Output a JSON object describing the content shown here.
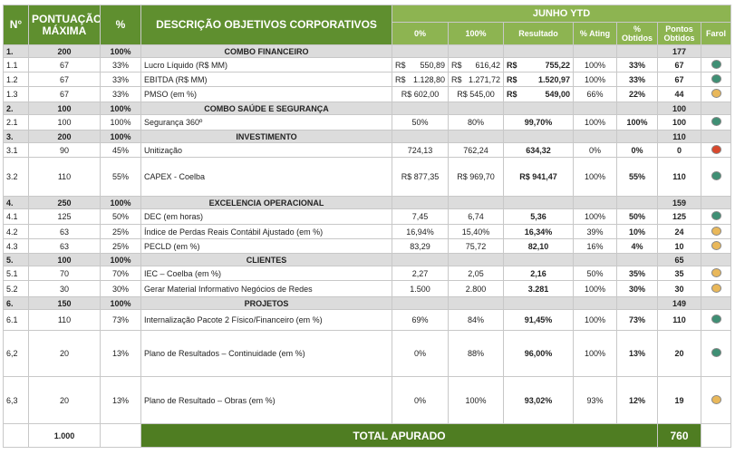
{
  "header": {
    "n": "N°",
    "points": "PONTUAÇÃO MÁXIMA",
    "pct": "%",
    "desc": "DESCRIÇÃO OBJETIVOS CORPORATIVOS",
    "period": "JUNHO YTD",
    "cols": [
      "0%",
      "100%",
      "Resultado",
      "% Ating",
      "% Obtidos",
      "Pontos Obtidos",
      "Farol"
    ]
  },
  "farol_colors": {
    "green": "#3f8f74",
    "yellow": "#e9b85a",
    "red": "#d8482c"
  },
  "sections": [
    {
      "number": "1.",
      "points": "200",
      "pct": "100%",
      "title": "COMBO FINANCEIRO",
      "obtained": "177",
      "items": [
        [
          "1.1",
          "67",
          "33%",
          "Lucro Líquido (R$ MM)",
          [
            "R$",
            "550,89"
          ],
          [
            "R$",
            "616,42"
          ],
          [
            "R$",
            "755,22"
          ],
          "100%",
          "33%",
          "67",
          "green"
        ],
        [
          "1.2",
          "67",
          "33%",
          "EBITDA (R$ MM)",
          [
            "R$",
            "1.128,80"
          ],
          [
            "R$",
            "1.271,72"
          ],
          [
            "R$",
            "1.520,97"
          ],
          "100%",
          "33%",
          "67",
          "green"
        ],
        [
          "1.3",
          "67",
          "33%",
          "PMSO (em %)",
          "R$ 602,00",
          "R$ 545,00",
          [
            "R$",
            "549,00"
          ],
          "66%",
          "22%",
          "44",
          "yellow"
        ]
      ]
    },
    {
      "number": "2.",
      "points": "100",
      "pct": "100%",
      "title": "COMBO SAÚDE E SEGURANÇA",
      "obtained": "100",
      "items": [
        [
          "2.1",
          "100",
          "100%",
          "Segurança 360º",
          "50%",
          "80%",
          "99,70%",
          "100%",
          "100%",
          "100",
          "green"
        ]
      ]
    },
    {
      "number": "3.",
      "points": "200",
      "pct": "100%",
      "title": "INVESTIMENTO",
      "obtained": "110",
      "items": [
        [
          "3.1",
          "90",
          "45%",
          "Unitização",
          "724,13",
          "762,24",
          "634,32",
          "0%",
          "0%",
          "0",
          "red"
        ],
        [
          "3.2",
          "110",
          "55%",
          "CAPEX - Coelba",
          "R$ 877,35",
          "R$ 969,70",
          "R$ 941,47",
          "100%",
          "55%",
          "110",
          "green"
        ]
      ]
    },
    {
      "number": "4.",
      "points": "250",
      "pct": "100%",
      "title": "EXCELENCIA OPERACIONAL",
      "obtained": "159",
      "items": [
        [
          "4.1",
          "125",
          "50%",
          "DEC (em horas)",
          "7,45",
          "6,74",
          "5,36",
          "100%",
          "50%",
          "125",
          "green"
        ],
        [
          "4.2",
          "63",
          "25%",
          "Índice de Perdas Reais Contábil Ajustado (em %)",
          "16,94%",
          "15,40%",
          "16,34%",
          "39%",
          "10%",
          "24",
          "yellow"
        ],
        [
          "4.3",
          "63",
          "25%",
          "PECLD (em %)",
          "83,29",
          "75,72",
          "82,10",
          "16%",
          "4%",
          "10",
          "yellow"
        ]
      ]
    },
    {
      "number": "5.",
      "points": "100",
      "pct": "100%",
      "title": "CLIENTES",
      "obtained": "65",
      "items": [
        [
          "5.1",
          "70",
          "70%",
          "IEC – Coelba (em %)",
          "2,27",
          "2,05",
          "2,16",
          "50%",
          "35%",
          "35",
          "yellow"
        ],
        [
          "5.2",
          "30",
          "30%",
          "Gerar Material Informativo Negócios de Redes",
          "1.500",
          "2.800",
          "3.281",
          "100%",
          "30%",
          "30",
          "yellow"
        ]
      ]
    },
    {
      "number": "6.",
      "points": "150",
      "pct": "100%",
      "title": "PROJETOS",
      "obtained": "149",
      "items": [
        [
          "6.1",
          "110",
          "73%",
          "Internalização Pacote 2 Físico/Financeiro (em %)",
          "69%",
          "84%",
          "91,45%",
          "100%",
          "73%",
          "110",
          "green"
        ],
        [
          "6,2",
          "20",
          "13%",
          "Plano de Resultados – Continuidade (em %)",
          "0%",
          "88%",
          "96,00%",
          "100%",
          "13%",
          "20",
          "green"
        ],
        [
          "6,3",
          "20",
          "13%",
          "Plano de Resultado – Obras (em %)",
          "0%",
          "100%",
          "93,02%",
          "93%",
          "12%",
          "19",
          "yellow"
        ]
      ]
    }
  ],
  "total": {
    "points": "1.000",
    "label": "TOTAL APURADO",
    "obtained": "760"
  }
}
